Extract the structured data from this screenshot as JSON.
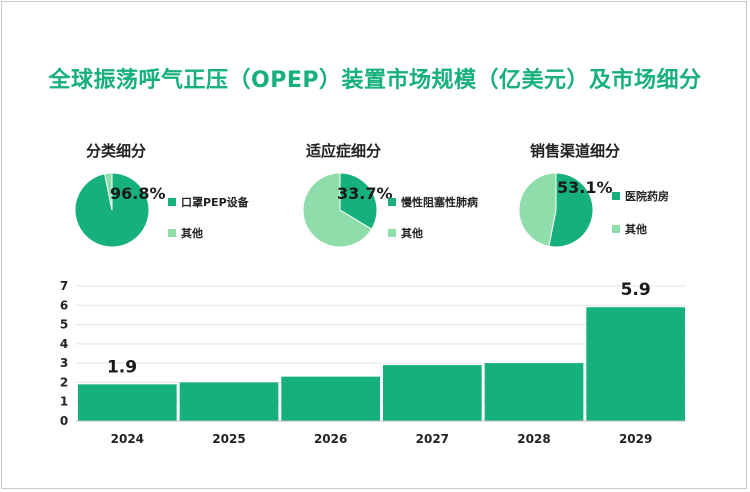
{
  "title": "全球振荡呼气正压（OPEP）装置市场规模（亿美元）及市场细分",
  "colors": {
    "primary": "#15b07b",
    "secondary": "#8fddab",
    "title": "#15b07b"
  },
  "pies": [
    {
      "heading": "分类细分",
      "pct_label": "96.8%",
      "legend": [
        {
          "label": "口罩PEP设备",
          "color": "#15b07b"
        },
        {
          "label": "其他",
          "color": "#8fddab"
        }
      ]
    },
    {
      "heading": "适应症细分",
      "pct_label": "33.7%",
      "legend": [
        {
          "label": "慢性阻塞性肺病",
          "color": "#15b07b"
        },
        {
          "label": "其他",
          "color": "#8fddab"
        }
      ]
    },
    {
      "heading": "销售渠道细分",
      "pct_label": "53.1%",
      "legend": [
        {
          "label": "医院药房",
          "color": "#15b07b"
        },
        {
          "label": "其他",
          "color": "#8fddab"
        }
      ]
    }
  ],
  "chart_data": [
    {
      "type": "pie",
      "title": "分类细分",
      "slices": [
        {
          "name": "口罩PEP设备",
          "value": 96.8
        },
        {
          "name": "其他",
          "value": 3.2
        }
      ]
    },
    {
      "type": "pie",
      "title": "适应症细分",
      "slices": [
        {
          "name": "慢性阻塞性肺病",
          "value": 33.7
        },
        {
          "name": "其他",
          "value": 66.3
        }
      ]
    },
    {
      "type": "pie",
      "title": "销售渠道细分",
      "slices": [
        {
          "name": "医院药房",
          "value": 53.1
        },
        {
          "name": "其他",
          "value": 46.9
        }
      ]
    },
    {
      "type": "bar",
      "categories": [
        "2024",
        "2025",
        "2026",
        "2027",
        "2028",
        "2029"
      ],
      "values": [
        1.9,
        2.0,
        2.3,
        2.9,
        3.0,
        5.9
      ],
      "value_labels": [
        "1.9",
        "",
        "",
        "",
        "",
        "5.9"
      ],
      "ylim": [
        0,
        7
      ],
      "yticks": [
        "0",
        "1",
        "2",
        "3",
        "4",
        "5",
        "6",
        "7"
      ],
      "grid": true
    }
  ]
}
